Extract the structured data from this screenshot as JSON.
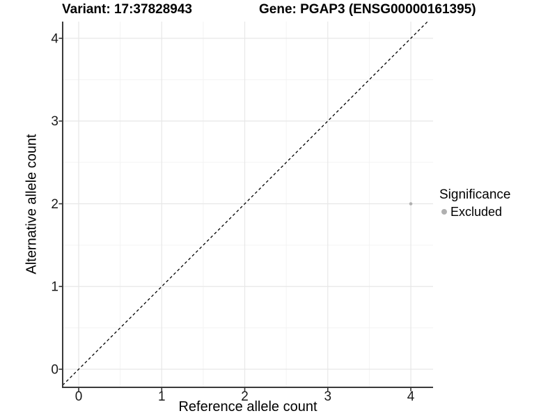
{
  "chart_data": {
    "type": "scatter",
    "title_left": "Variant: 17:37828943",
    "title_right": "Gene: PGAP3 (ENSG00000161395)",
    "xlabel": "Reference allele count",
    "ylabel": "Alternative allele count",
    "xlim": [
      -0.193,
      4.268
    ],
    "ylim": [
      -0.219,
      4.202
    ],
    "x_ticks": [
      0,
      1,
      2,
      3,
      4
    ],
    "y_ticks": [
      0,
      1,
      2,
      3,
      4
    ],
    "x_minor_ticks": [
      0.5,
      1.5,
      2.5,
      3.5
    ],
    "y_minor_ticks": [
      0.5,
      1.5,
      2.5,
      3.5
    ],
    "grid": "on",
    "identity_line": {
      "equation": "y = x",
      "style": "dashed",
      "color": "#000000"
    },
    "series": [
      {
        "name": "Excluded",
        "color": "#b0b0b0",
        "points": [
          {
            "x": 4,
            "y": 2
          }
        ]
      }
    ],
    "legend": {
      "title": "Significance",
      "position": "right",
      "entries": [
        {
          "label": "Excluded",
          "color": "#b0b0b0"
        }
      ]
    },
    "colors": {
      "background": "#ffffff",
      "grid_major": "#e7e7e7",
      "grid_minor": "#f3f3f3",
      "axis_line": "#3a3a3a",
      "tick_mark": "#333333",
      "tick_text": "#1a1a1a",
      "text": "#000000"
    }
  }
}
